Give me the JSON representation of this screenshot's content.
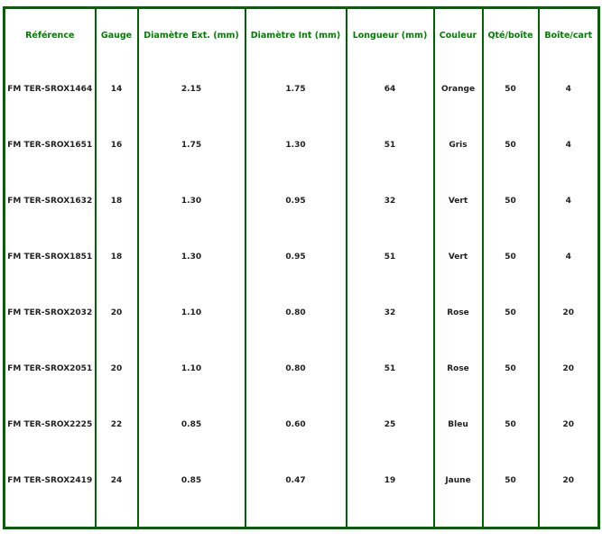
{
  "headers": [
    "Référence",
    "Gauge",
    "Diamètre Ext. (mm)",
    "Diamètre Int (mm)",
    "Longueur (mm)",
    "Couleur",
    "Qté/boîte",
    "Boîte/cart"
  ],
  "rows": [
    [
      "FM TER-SROX1464",
      "14",
      "2.15",
      "1.75",
      "64",
      "Orange",
      "50",
      "4"
    ],
    [
      "FM TER-SROX1651",
      "16",
      "1.75",
      "1.30",
      "51",
      "Gris",
      "50",
      "4"
    ],
    [
      "FM TER-SROX1632",
      "18",
      "1.30",
      "0.95",
      "32",
      "Vert",
      "50",
      "4"
    ],
    [
      "FM TER-SROX1851",
      "18",
      "1.30",
      "0.95",
      "51",
      "Vert",
      "50",
      "4"
    ],
    [
      "FM TER-SROX2032",
      "20",
      "1.10",
      "0.80",
      "32",
      "Rose",
      "50",
      "20"
    ],
    [
      "FM TER-SROX2051",
      "20",
      "1.10",
      "0.80",
      "51",
      "Rose",
      "50",
      "20"
    ],
    [
      "FM TER-SROX2225",
      "22",
      "0.85",
      "0.60",
      "25",
      "Bleu",
      "50",
      "20"
    ],
    [
      "FM TER-SROX2419",
      "24",
      "0.85",
      "0.47",
      "19",
      "Jaune",
      "50",
      "20"
    ]
  ],
  "colors": {
    "border": "#006400",
    "header": "#008000"
  }
}
